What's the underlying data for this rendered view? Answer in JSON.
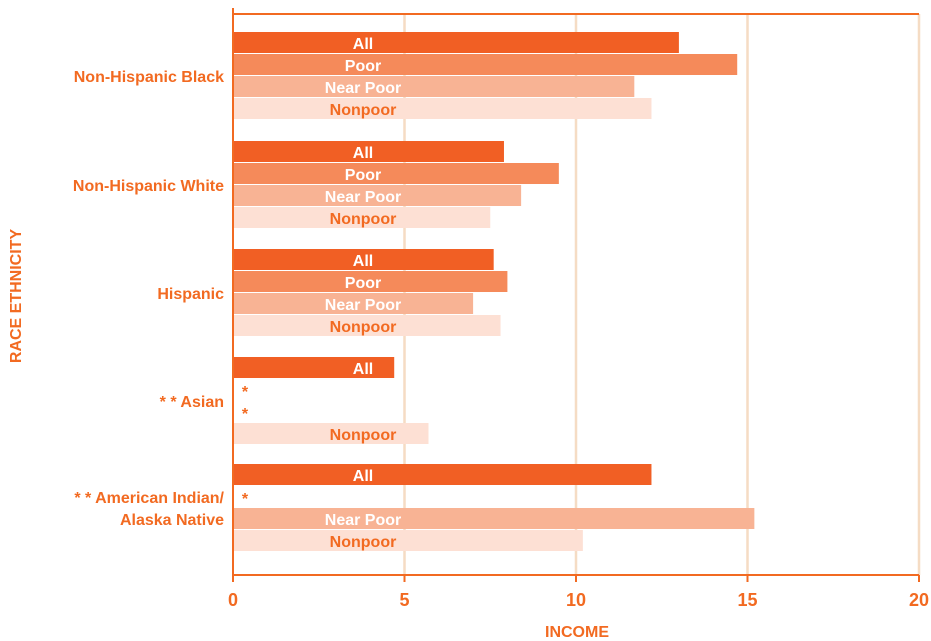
{
  "colors": {
    "accent": "#f26a21",
    "grid": "#f5dcc4",
    "axis": "#f26a21",
    "series": {
      "All": "#f15f24",
      "Poor": "#f58a5a",
      "Near Poor": "#f8b394",
      "Nonpoor": "#fde0d4"
    }
  },
  "chart_data": {
    "type": "bar",
    "orientation": "horizontal",
    "title": "",
    "xlabel": "INCOME",
    "ylabel": "RACE ETHNICITY",
    "xlim": [
      0,
      20
    ],
    "xticks": [
      "0",
      "5",
      "10",
      "15",
      "20"
    ],
    "grid": true,
    "legend": "none",
    "bar_labels": [
      "All",
      "Poor",
      "Near Poor",
      "Nonpoor"
    ],
    "missing_marker": "*",
    "categories": [
      {
        "label": [
          "Non-Hispanic Black"
        ],
        "bars": [
          {
            "series": "All",
            "value": 13.0
          },
          {
            "series": "Poor",
            "value": 14.7
          },
          {
            "series": "Near Poor",
            "value": 11.7
          },
          {
            "series": "Nonpoor",
            "value": 12.2
          }
        ]
      },
      {
        "label": [
          "Non-Hispanic White"
        ],
        "bars": [
          {
            "series": "All",
            "value": 7.9
          },
          {
            "series": "Poor",
            "value": 9.5
          },
          {
            "series": "Near Poor",
            "value": 8.4
          },
          {
            "series": "Nonpoor",
            "value": 7.5
          }
        ]
      },
      {
        "label": [
          "Hispanic"
        ],
        "bars": [
          {
            "series": "All",
            "value": 7.6
          },
          {
            "series": "Poor",
            "value": 8.0
          },
          {
            "series": "Near Poor",
            "value": 7.0
          },
          {
            "series": "Nonpoor",
            "value": 7.8
          }
        ]
      },
      {
        "label": [
          "* * Asian"
        ],
        "bars": [
          {
            "series": "All",
            "value": 4.7
          },
          {
            "series": "Poor",
            "value": null
          },
          {
            "series": "Near Poor",
            "value": null
          },
          {
            "series": "Nonpoor",
            "value": 5.7
          }
        ]
      },
      {
        "label": [
          "* * American Indian/",
          "Alaska Native"
        ],
        "bars": [
          {
            "series": "All",
            "value": 12.2
          },
          {
            "series": "Poor",
            "value": null
          },
          {
            "series": "Near Poor",
            "value": 15.2
          },
          {
            "series": "Nonpoor",
            "value": 10.2
          }
        ]
      }
    ]
  }
}
